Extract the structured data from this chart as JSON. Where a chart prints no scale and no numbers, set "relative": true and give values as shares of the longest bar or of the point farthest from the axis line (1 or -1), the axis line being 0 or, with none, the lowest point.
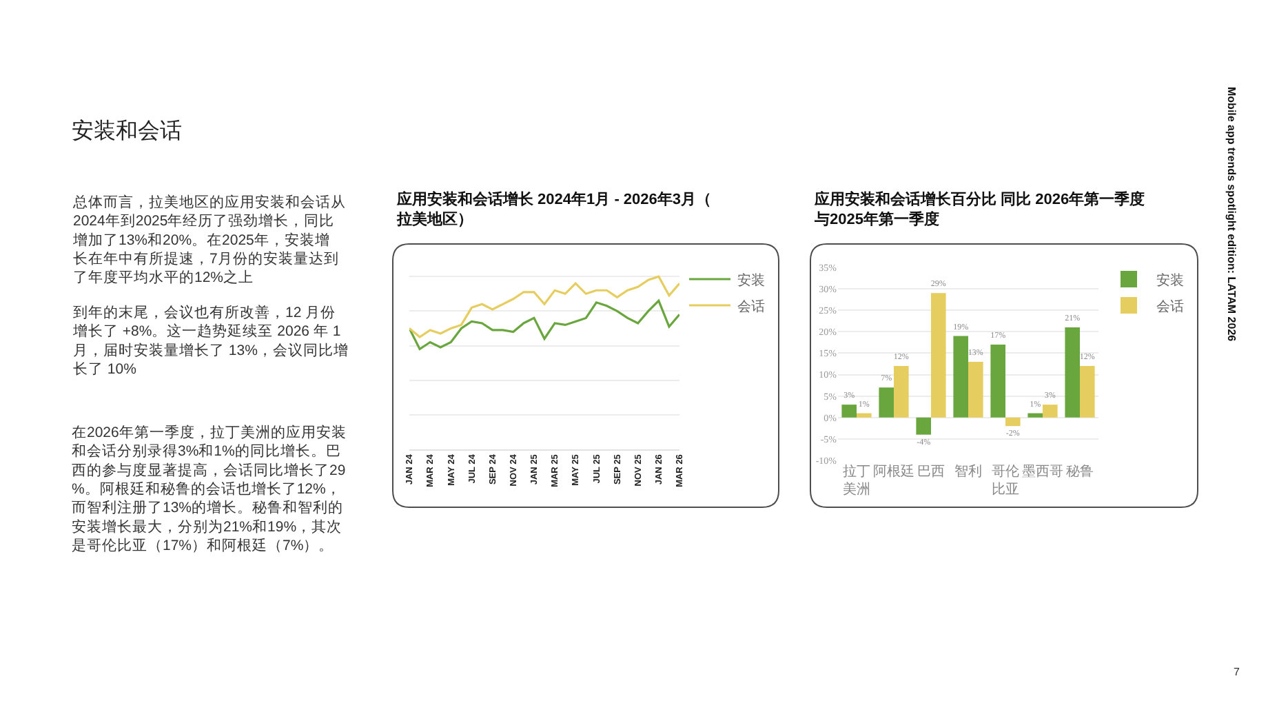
{
  "chart_data": [
    {
      "type": "other",
      "title": "安装和会话",
      "annotations": [
        "总体而言，拉美地区的应用安装和会话从2024年到2025年经历了强劲增长，同比增加了13%和20%。在2025年，安装增长在年中有所提速，7月份的安装量达到了年度平均水平的12%之上",
        "到年的末尾，会议也有所改善，12 月份增长了 +8%。这一趋势延续至 2026 年 1 月，届时安装量增长了 13%，会议同比增长了 10%",
        "在2026年第一季度，拉丁美洲的应用安装和会话分别录得3%和1%的同比增长。巴西的参与度显著提高，会话同比增长了29%。阿根廷和秘鲁的会话也增长了12%，而智利注册了13%的增长。秘鲁和智利的安装增长最大，分别为21%和19%，其次是哥伦比亚（17%）和阿根廷（7%）。",
        "Mobile app trends spotlight edition: LATAM 2026",
        "7"
      ]
    },
    {
      "type": "line",
      "title": "应用安装和会话增长 2024年1月 - 2026年3月（拉美地区）",
      "relative": true,
      "grid": "y",
      "legend": "top right",
      "categories": [
        "JAN 24",
        null,
        "MAR 24",
        null,
        "MAY 24",
        null,
        "JUL 24",
        null,
        "SEP 24",
        null,
        "NOV 24",
        null,
        "JAN 25",
        null,
        "MAR 25",
        null,
        "MAY 25",
        null,
        "JUL 25",
        null,
        "SEP 25",
        null,
        "NOV 25",
        null,
        "JAN 26",
        null,
        "MAR 26"
      ],
      "series": [
        {
          "name": "安装",
          "color": "#6aa63e",
          "values": [
            0.7,
            0.58,
            0.62,
            0.59,
            0.62,
            0.7,
            0.74,
            0.73,
            0.69,
            0.69,
            0.68,
            0.73,
            0.76,
            0.64,
            0.73,
            0.72,
            0.74,
            0.76,
            0.85,
            0.83,
            0.8,
            0.76,
            0.73,
            0.8,
            0.86,
            0.71,
            0.78
          ]
        },
        {
          "name": "会话",
          "color": "#e6cd5f",
          "values": [
            0.7,
            0.65,
            0.69,
            0.67,
            0.7,
            0.72,
            0.82,
            0.84,
            0.81,
            0.84,
            0.87,
            0.91,
            0.91,
            0.84,
            0.92,
            0.9,
            0.96,
            0.9,
            0.92,
            0.92,
            0.88,
            0.92,
            0.94,
            0.98,
            1.0,
            0.89,
            0.96
          ]
        }
      ]
    },
    {
      "type": "bar",
      "title": "应用安装和会话增长百分比 同比 2026年第一季度与2025年第一季度",
      "grid": "y",
      "legend": "top right",
      "categories": [
        "拉丁美洲",
        "阿根廷",
        "巴西",
        "智利",
        "哥伦比亚",
        "墨西哥",
        "秘鲁"
      ],
      "ylim": [
        -10,
        35
      ],
      "yticks": [
        {
          "value": -10,
          "label": "-10%"
        },
        {
          "value": -5,
          "label": "-5%"
        },
        {
          "value": 0,
          "label": "0%"
        },
        {
          "value": 5,
          "label": "5%"
        },
        {
          "value": 10,
          "label": "10%"
        },
        {
          "value": 15,
          "label": "15%"
        },
        {
          "value": 20,
          "label": "20%"
        },
        {
          "value": 25,
          "label": "25%"
        },
        {
          "value": 30,
          "label": "30%"
        },
        {
          "value": 35,
          "label": "35%"
        }
      ],
      "series": [
        {
          "name": "安装",
          "color": "#6aa63e",
          "values": [
            3,
            7,
            -4,
            19,
            17,
            1,
            21
          ],
          "value_labels": [
            "3%",
            "7%",
            "-4%",
            "19%",
            "17%",
            "1%",
            "21%"
          ]
        },
        {
          "name": "会话",
          "color": "#e6cd5f",
          "values": [
            1,
            12,
            29,
            13,
            -2,
            3,
            12
          ],
          "value_labels": [
            "1%",
            "12%",
            "29%",
            "13%",
            "-2%",
            "3%",
            "12%"
          ]
        }
      ]
    }
  ]
}
